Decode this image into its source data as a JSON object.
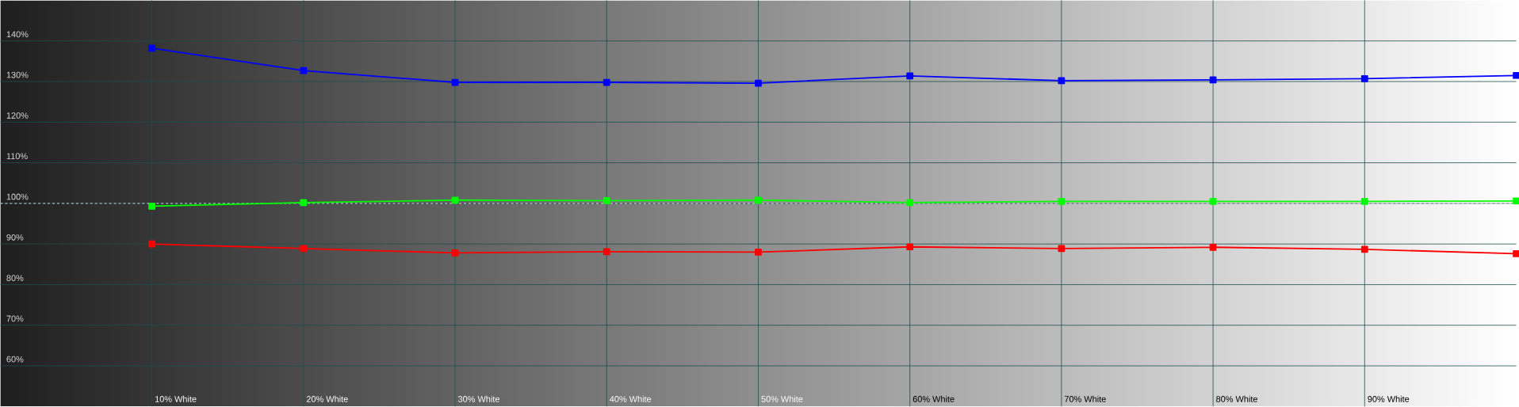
{
  "chart_data": {
    "type": "line",
    "categories": [
      "10% White",
      "20% White",
      "30% White",
      "40% White",
      "50% White",
      "60% White",
      "70% White",
      "80% White",
      "90% White",
      null
    ],
    "series": [
      {
        "color": "#0000ff",
        "values": [
          138.2,
          132.7,
          129.8,
          129.8,
          129.6,
          131.4,
          130.2,
          130.4,
          130.7,
          131.5
        ]
      },
      {
        "color": "#00ff00",
        "values": [
          99.3,
          100.2,
          100.8,
          100.7,
          100.8,
          100.2,
          100.5,
          100.5,
          100.5,
          100.6
        ]
      },
      {
        "color": "#ff0000",
        "values": [
          90.0,
          88.9,
          87.8,
          88.1,
          88.0,
          89.3,
          88.9,
          89.2,
          88.7,
          87.6
        ]
      }
    ],
    "ylim": [
      50,
      150
    ],
    "yticks": [
      {
        "value": 60,
        "label": "60%"
      },
      {
        "value": 70,
        "label": "70%"
      },
      {
        "value": 80,
        "label": "80%"
      },
      {
        "value": 90,
        "label": "90%"
      },
      {
        "value": 100,
        "label": "100%"
      },
      {
        "value": 110,
        "label": "110%"
      },
      {
        "value": 120,
        "label": "120%"
      },
      {
        "value": 130,
        "label": "130%"
      },
      {
        "value": 140,
        "label": "140%"
      }
    ],
    "grid": true,
    "marker": "square",
    "line_style": "solid",
    "ref_lines": [
      {
        "axis": "y",
        "value": 100,
        "color": "#ffffff",
        "line_style": "dashed"
      }
    ]
  }
}
